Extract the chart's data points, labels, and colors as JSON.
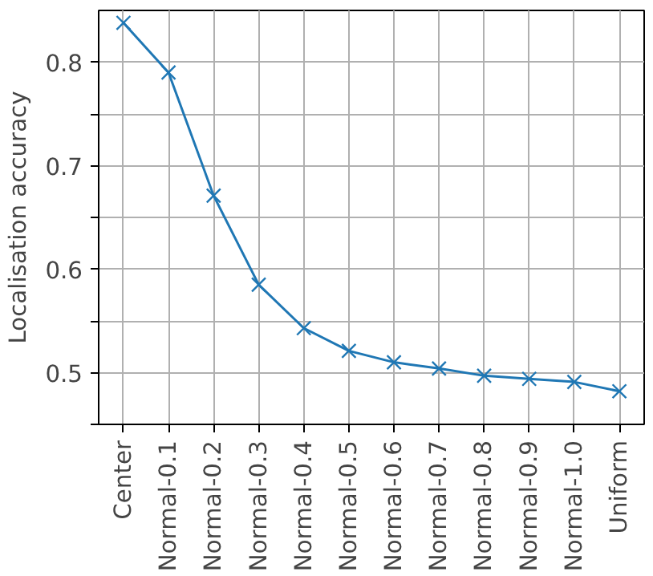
{
  "chart_data": {
    "type": "line",
    "ylabel": "Localisation accuracy",
    "categories": [
      "Center",
      "Normal-0.1",
      "Normal-0.2",
      "Normal-0.3",
      "Normal-0.4",
      "Normal-0.5",
      "Normal-0.6",
      "Normal-0.7",
      "Normal-0.8",
      "Normal-0.9",
      "Normal-1.0",
      "Uniform"
    ],
    "series": [
      {
        "color": "#1f77b4",
        "values": [
          0.838,
          0.79,
          0.671,
          0.585,
          0.543,
          0.521,
          0.51,
          0.504,
          0.497,
          0.494,
          0.491,
          0.482
        ]
      }
    ],
    "ylim": [
      0.45,
      0.85
    ],
    "yticks": [
      {
        "value": 0.45,
        "label": null
      },
      0.5,
      {
        "value": 0.55,
        "label": null
      },
      0.6,
      {
        "value": 0.65,
        "label": null
      },
      0.7,
      {
        "value": 0.75,
        "label": null
      },
      0.8
    ],
    "grid": true,
    "marker": "cross",
    "line_style": "solid"
  }
}
